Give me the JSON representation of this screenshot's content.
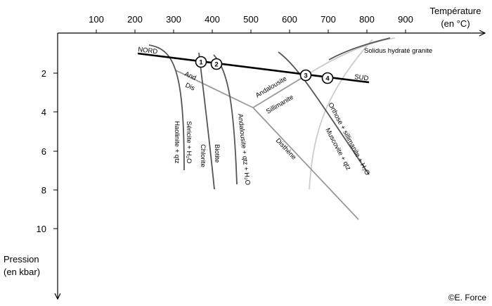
{
  "axes": {
    "x_title_line1": "Température",
    "x_title_line2": "(en °C)",
    "y_title_line1": "Pression",
    "y_title_line2": "(en kbar)",
    "x_ticks": [
      "100",
      "200",
      "300",
      "400",
      "500",
      "600",
      "700",
      "800",
      "900"
    ],
    "y_ticks": [
      "2",
      "4",
      "6",
      "8",
      "10"
    ]
  },
  "profile": {
    "start_label": "NORD",
    "end_label": "SUD",
    "points": [
      "1",
      "2",
      "3",
      "4"
    ]
  },
  "triple_point": {
    "and_short": "And",
    "dis_short": "Dis",
    "andalousite": "Andalousite",
    "sillimanite": "Sillimanite",
    "disthene": "Disthène"
  },
  "reactions": {
    "kaolinite": "Haolinite + qtz",
    "sericite": "Séricite + H₂O",
    "chlorite": "Chlorite",
    "biotite": "Biotite",
    "andalousite_qtz": "Andalousite + qtz + H₂O",
    "orthose": "Orthose + sillimanite + H₂O",
    "muscovite": "Muscovite + qtz",
    "solidus": "Solidus hydraté granite"
  },
  "credit": "©E. Force",
  "colors": {
    "axis": "#000000",
    "profile": "#000000",
    "dark_curve": "#555555",
    "mid_curve": "#999999",
    "light_curve": "#cccccc"
  }
}
